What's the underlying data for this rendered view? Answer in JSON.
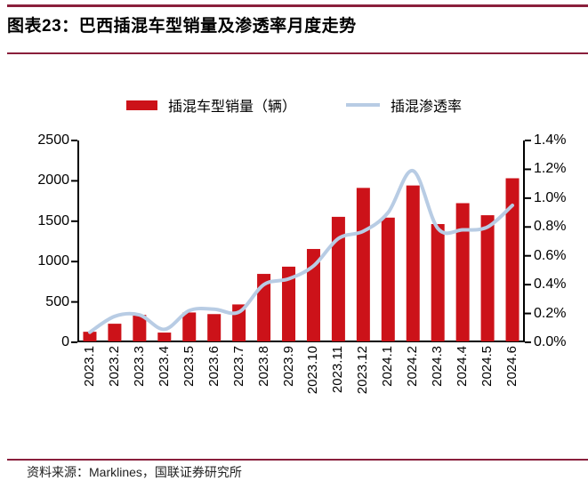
{
  "page": {
    "title": "图表23：巴西插混车型销量及渗透率月度走势",
    "source_note": "资料来源：Marklines，国联证券研究所"
  },
  "colors": {
    "rule": "#8A1F3C",
    "bar": "#CC1219",
    "line": "#B8CCE4",
    "axis": "#000000",
    "text": "#000000"
  },
  "chart_data": {
    "type": "bar",
    "combo": "bar+line",
    "title": "巴西插混车型销量及渗透率月度走势",
    "categories": [
      "2023.1",
      "2023.2",
      "2023.3",
      "2023.4",
      "2023.5",
      "2023.6",
      "2023.7",
      "2023.8",
      "2023.9",
      "2023.10",
      "2023.11",
      "2023.12",
      "2024.1",
      "2024.2",
      "2024.3",
      "2024.4",
      "2024.5",
      "2024.6"
    ],
    "series": [
      {
        "name": "插混车型销量（辆）",
        "type": "bar",
        "axis": "left",
        "values": [
          120,
          220,
          330,
          110,
          360,
          340,
          460,
          840,
          930,
          1150,
          1550,
          1910,
          1540,
          1940,
          1460,
          1720,
          1570,
          2030
        ]
      },
      {
        "name": "插混渗透率",
        "type": "line",
        "axis": "right",
        "unit": "%",
        "values": [
          0.07,
          0.18,
          0.19,
          0.09,
          0.22,
          0.23,
          0.21,
          0.4,
          0.44,
          0.53,
          0.72,
          0.77,
          0.9,
          1.19,
          0.79,
          0.78,
          0.8,
          0.95
        ]
      }
    ],
    "left_axis": {
      "min": 0,
      "max": 2500,
      "step": 500,
      "ticks": [
        "0",
        "500",
        "1000",
        "1500",
        "2000",
        "2500"
      ]
    },
    "right_axis": {
      "min": 0,
      "max": 1.4,
      "step": 0.2,
      "ticks": [
        "0.0%",
        "0.2%",
        "0.4%",
        "0.6%",
        "0.8%",
        "1.0%",
        "1.2%",
        "1.4%"
      ]
    },
    "grid": false,
    "legend_position": "top-center"
  }
}
